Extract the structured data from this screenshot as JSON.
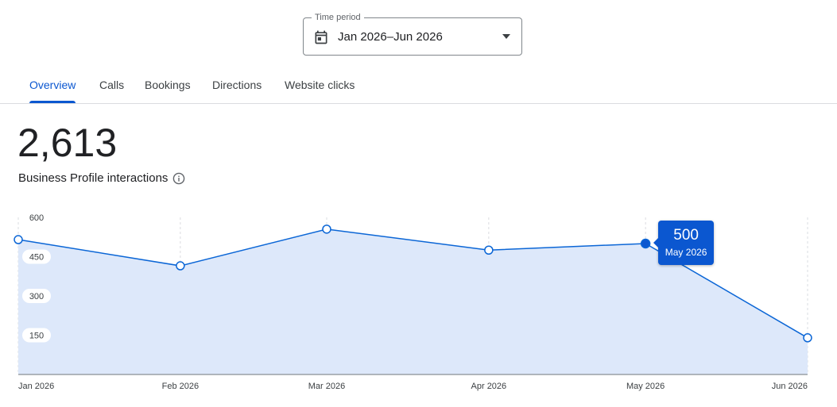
{
  "period": {
    "label": "Time period",
    "value": "Jan 2026–Jun 2026",
    "icon": "calendar-icon",
    "caret_icon": "dropdown-arrow-icon"
  },
  "tabs": [
    {
      "label": "Overview",
      "active": true
    },
    {
      "label": "Calls",
      "active": false
    },
    {
      "label": "Bookings",
      "active": false
    },
    {
      "label": "Directions",
      "active": false
    },
    {
      "label": "Website clicks",
      "active": false
    }
  ],
  "metric": {
    "value": "2,613",
    "label": "Business Profile interactions",
    "info_icon": "info-icon"
  },
  "colors": {
    "accent": "#0b57d0",
    "line": "#0b66d6",
    "area": "#dde8fa",
    "grid": "#dadce0",
    "axis": "#9aa0a6"
  },
  "chart_data": {
    "type": "area",
    "x": [
      "Jan 2026",
      "Feb 2026",
      "Mar 2026",
      "Apr 2026",
      "May 2026",
      "Jun 2026"
    ],
    "values": [
      515,
      415,
      555,
      475,
      500,
      140
    ],
    "yticks": [
      "600",
      "450",
      "300",
      "150"
    ],
    "ytick_values": [
      600,
      450,
      300,
      150
    ],
    "ylim": [
      0,
      600
    ],
    "highlight": {
      "index": 4,
      "value": "500",
      "label": "May 2026"
    }
  }
}
